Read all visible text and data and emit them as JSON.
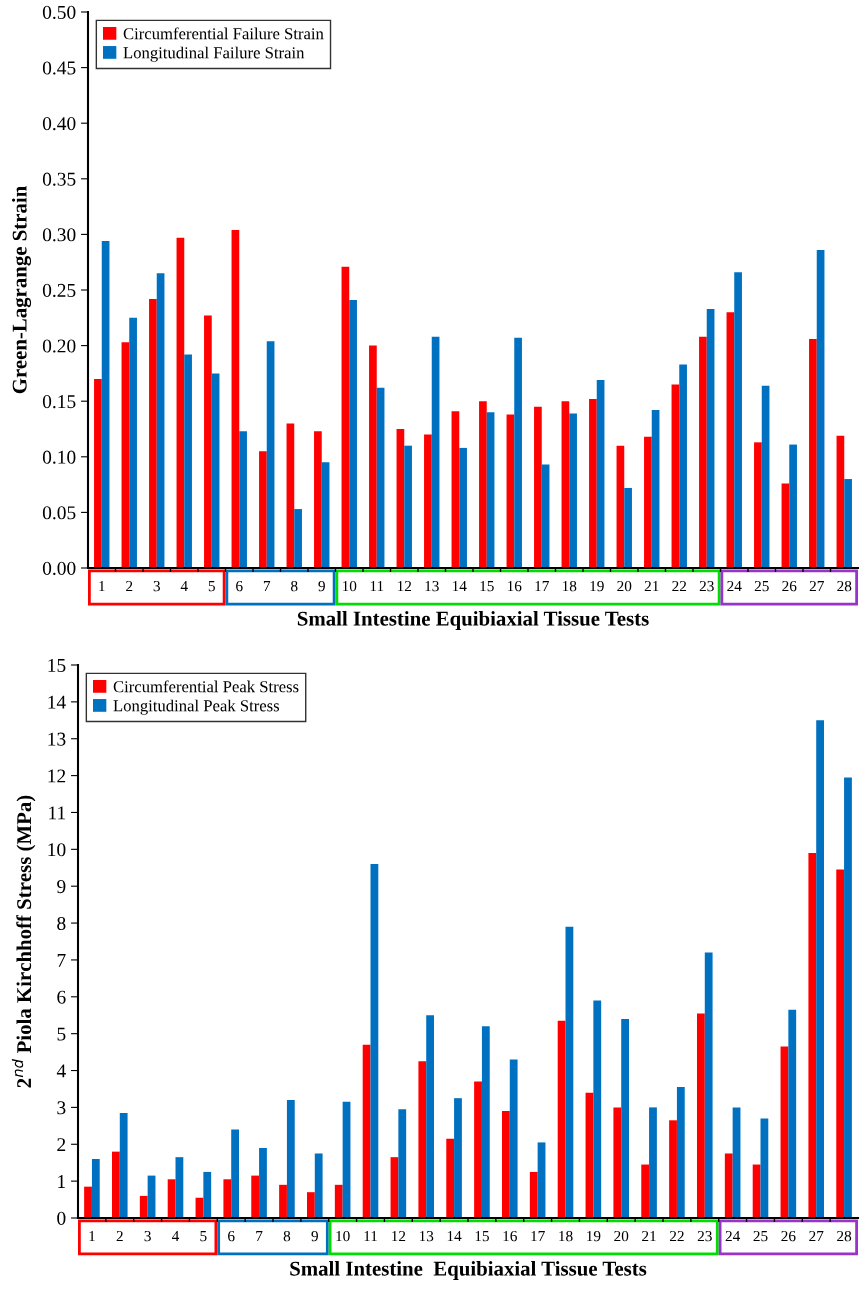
{
  "chart_data": [
    {
      "type": "bar",
      "ylabel": "Green-Lagrange Strain",
      "xlabel": "Small Intestine Equibiaxial Tissue Tests",
      "categories": [
        "1",
        "2",
        "3",
        "4",
        "5",
        "6",
        "7",
        "8",
        "9",
        "10",
        "11",
        "12",
        "13",
        "14",
        "15",
        "16",
        "17",
        "18",
        "19",
        "20",
        "21",
        "22",
        "23",
        "24",
        "25",
        "26",
        "27",
        "28"
      ],
      "series": [
        {
          "name": "Circumferential Failure Strain",
          "color": "#ff0000",
          "values": [
            0.17,
            0.203,
            0.242,
            0.297,
            0.227,
            0.304,
            0.105,
            0.13,
            0.123,
            0.271,
            0.2,
            0.125,
            0.12,
            0.141,
            0.15,
            0.138,
            0.145,
            0.15,
            0.152,
            0.11,
            0.118,
            0.165,
            0.208,
            0.23,
            0.113,
            0.076,
            0.206,
            0.119
          ]
        },
        {
          "name": "Longitudinal Failure Strain",
          "color": "#0070c0",
          "values": [
            0.294,
            0.225,
            0.265,
            0.192,
            0.175,
            0.123,
            0.204,
            0.053,
            0.095,
            0.241,
            0.162,
            0.11,
            0.208,
            0.108,
            0.14,
            0.207,
            0.093,
            0.139,
            0.169,
            0.072,
            0.142,
            0.183,
            0.233,
            0.266,
            0.164,
            0.111,
            0.286,
            0.08
          ]
        }
      ],
      "ylim": [
        0,
        0.5
      ],
      "yticks": [
        {
          "value": 0,
          "label": "0.00"
        },
        {
          "value": 0.05,
          "label": "0.05"
        },
        {
          "value": 0.1,
          "label": "0.10"
        },
        {
          "value": 0.15,
          "label": "0.15"
        },
        {
          "value": 0.2,
          "label": "0.20"
        },
        {
          "value": 0.25,
          "label": "0.25"
        },
        {
          "value": 0.3,
          "label": "0.30"
        },
        {
          "value": 0.35,
          "label": "0.35"
        },
        {
          "value": 0.4,
          "label": "0.40"
        },
        {
          "value": 0.45,
          "label": "0.45"
        },
        {
          "value": 0.5,
          "label": "0.50"
        }
      ],
      "legend": "top left",
      "grid": false
    },
    {
      "type": "bar",
      "ylabel": "2$^{nd}$ Piola Kirchhoff Stress (MPa)",
      "xlabel": "Small Intestine  Equibiaxial Tissue Tests",
      "categories": [
        "1",
        "2",
        "3",
        "4",
        "5",
        "6",
        "7",
        "8",
        "9",
        "10",
        "11",
        "12",
        "13",
        "14",
        "15",
        "16",
        "17",
        "18",
        "19",
        "20",
        "21",
        "22",
        "23",
        "24",
        "25",
        "26",
        "27",
        "28"
      ],
      "series": [
        {
          "name": "Circumferential Peak Stress",
          "color": "#ff0000",
          "values": [
            0.85,
            1.8,
            0.6,
            1.05,
            0.55,
            1.05,
            1.15,
            0.9,
            0.7,
            0.9,
            4.7,
            1.65,
            4.25,
            2.15,
            3.7,
            2.9,
            1.25,
            5.35,
            3.4,
            3.0,
            1.45,
            2.65,
            5.55,
            1.75,
            1.45,
            4.65,
            9.9,
            9.45
          ]
        },
        {
          "name": "Longitudinal Peak Stress",
          "color": "#0070c0",
          "values": [
            1.6,
            2.85,
            1.15,
            1.65,
            1.25,
            2.4,
            1.9,
            3.2,
            1.75,
            3.15,
            9.6,
            2.95,
            5.5,
            3.25,
            5.2,
            4.3,
            2.05,
            7.9,
            5.9,
            5.4,
            3.0,
            3.55,
            7.2,
            3.0,
            2.7,
            5.65,
            13.5,
            11.95
          ]
        }
      ],
      "ylim": [
        0,
        15
      ],
      "yticks": [
        0,
        1,
        2,
        3,
        4,
        5,
        6,
        7,
        8,
        9,
        10,
        11,
        12,
        13,
        14,
        15
      ],
      "legend": "top left",
      "grid": false
    }
  ]
}
